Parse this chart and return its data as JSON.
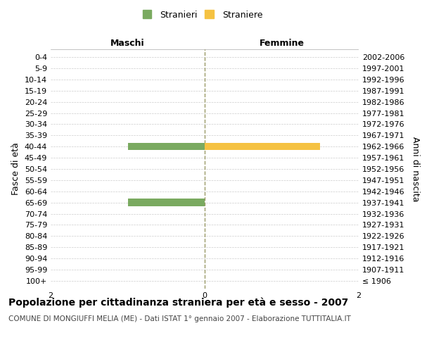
{
  "age_groups": [
    "100+",
    "95-99",
    "90-94",
    "85-89",
    "80-84",
    "75-79",
    "70-74",
    "65-69",
    "60-64",
    "55-59",
    "50-54",
    "45-49",
    "40-44",
    "35-39",
    "30-34",
    "25-29",
    "20-24",
    "15-19",
    "10-14",
    "5-9",
    "0-4"
  ],
  "birth_years": [
    "≤ 1906",
    "1907-1911",
    "1912-1916",
    "1917-1921",
    "1922-1926",
    "1927-1931",
    "1932-1936",
    "1937-1941",
    "1942-1946",
    "1947-1951",
    "1952-1956",
    "1957-1961",
    "1962-1966",
    "1967-1971",
    "1972-1976",
    "1977-1981",
    "1982-1986",
    "1987-1991",
    "1992-1996",
    "1997-2001",
    "2002-2006"
  ],
  "males": [
    0,
    0,
    0,
    0,
    0,
    0,
    0,
    1,
    0,
    0,
    0,
    0,
    1,
    0,
    0,
    0,
    0,
    0,
    0,
    0,
    0
  ],
  "females": [
    0,
    0,
    0,
    0,
    0,
    0,
    0,
    0,
    0,
    0,
    0,
    0,
    1.5,
    0,
    0,
    0,
    0,
    0,
    0,
    0,
    0
  ],
  "male_color": "#7aaa60",
  "female_color": "#f5c242",
  "xlim_min": -2,
  "xlim_max": 2,
  "title_main": "Popolazione per cittadinanza straniera per età e sesso - 2007",
  "title_sub": "COMUNE DI MONGIUFFI MELIA (ME) - Dati ISTAT 1° gennaio 2007 - Elaborazione TUTTITALIA.IT",
  "ylabel_left": "Fasce di età",
  "ylabel_right": "Anni di nascita",
  "header_left": "Maschi",
  "header_right": "Femmine",
  "legend_stranieri": "Stranieri",
  "legend_straniere": "Straniere",
  "bg_color": "#ffffff",
  "grid_color": "#cccccc",
  "vline_color": "#999966",
  "bar_height": 0.65,
  "tick_fontsize": 8,
  "label_fontsize": 9,
  "title_fontsize": 10,
  "sub_fontsize": 7.5
}
